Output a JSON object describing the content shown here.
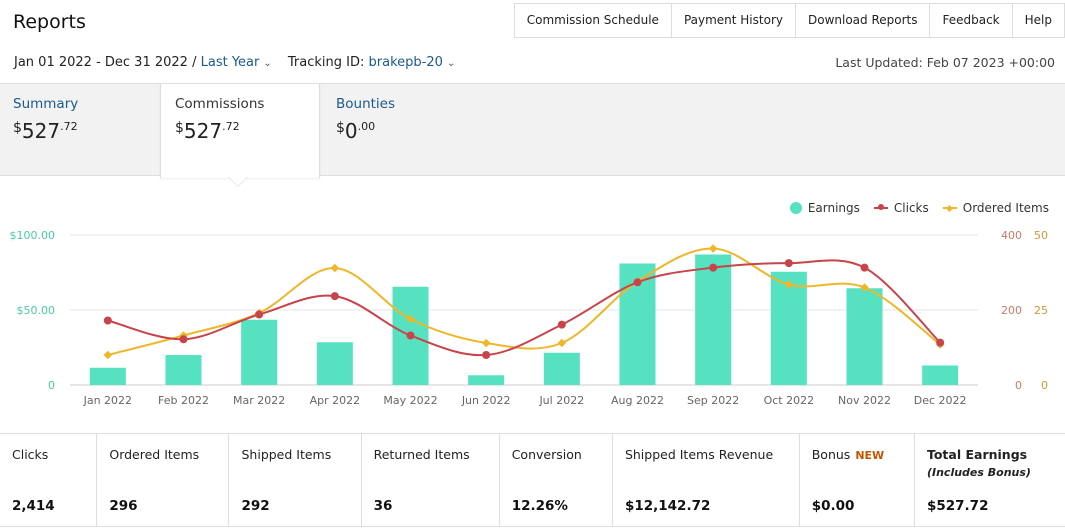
{
  "page_title": "Reports",
  "top_nav": [
    "Commission Schedule",
    "Payment History",
    "Download Reports",
    "Feedback",
    "Help"
  ],
  "filters": {
    "date_range": "Jan 01 2022 - Dec 31 2022",
    "separator": "/",
    "period": "Last Year",
    "tracking_label": "Tracking ID:",
    "tracking_id": "brakepb-20"
  },
  "last_updated": "Last Updated: Feb 07 2023 +00:00",
  "tabs": {
    "summary": {
      "label": "Summary",
      "currency": "$",
      "amount": "527",
      "cents": ".72"
    },
    "commissions": {
      "label": "Commissions",
      "currency": "$",
      "amount": "527",
      "cents": ".72"
    },
    "bounties": {
      "label": "Bounties",
      "currency": "$",
      "amount": "0",
      "cents": ".00"
    }
  },
  "legend": {
    "earnings": "Earnings",
    "clicks": "Clicks",
    "ordered": "Ordered Items"
  },
  "colors": {
    "earnings": "#56e2c1",
    "clicks": "#c8444a",
    "ordered": "#f0b62a",
    "left_axis": "#4cc9a3",
    "mid_axis": "#c97a68",
    "right_axis": "#c99a3a"
  },
  "chart_data": {
    "type": "bar",
    "categories": [
      "Jan 2022",
      "Feb 2022",
      "Mar 2022",
      "Apr 2022",
      "May 2022",
      "Jun 2022",
      "Jul 2022",
      "Aug 2022",
      "Sep 2022",
      "Oct 2022",
      "Nov 2022",
      "Dec 2022"
    ],
    "series": [
      {
        "name": "Earnings",
        "type": "bar",
        "axis": "earnings",
        "values": [
          11.5,
          20,
          43.5,
          28.5,
          65.5,
          6.5,
          21.5,
          81,
          87,
          75.5,
          64.5,
          13
        ]
      },
      {
        "name": "Clicks",
        "type": "line",
        "axis": "clicks",
        "values": [
          172,
          122,
          188,
          237,
          132,
          80,
          161,
          274,
          313,
          325,
          313,
          113
        ]
      },
      {
        "name": "Ordered Items",
        "type": "line",
        "axis": "ordered",
        "values": [
          10,
          16.5,
          24,
          39,
          22,
          14,
          14,
          34.5,
          45.5,
          33.5,
          32.5,
          13.5
        ]
      }
    ],
    "axes": {
      "earnings": {
        "ticks": [
          "$100.00",
          "$50.00",
          "0"
        ],
        "ylim": [
          0,
          100
        ]
      },
      "clicks": {
        "ticks": [
          "400",
          "200",
          "0"
        ],
        "ylim": [
          0,
          400
        ]
      },
      "ordered": {
        "ticks": [
          "50",
          "25",
          "0"
        ],
        "ylim": [
          0,
          50
        ]
      }
    },
    "grid": true,
    "legend_position": "top-right"
  },
  "stats": [
    {
      "label": "Clicks",
      "value": "2,414"
    },
    {
      "label": "Ordered Items",
      "value": "296"
    },
    {
      "label": "Shipped Items",
      "value": "292"
    },
    {
      "label": "Returned Items",
      "value": "36"
    },
    {
      "label": "Conversion",
      "value": "12.26%"
    },
    {
      "label": "Shipped Items Revenue",
      "value": "$12,142.72"
    },
    {
      "label": "Bonus",
      "badge": "NEW",
      "value": "$0.00"
    },
    {
      "label": "Total Earnings",
      "sublabel": "(Includes Bonus)",
      "value": "$527.72"
    }
  ]
}
